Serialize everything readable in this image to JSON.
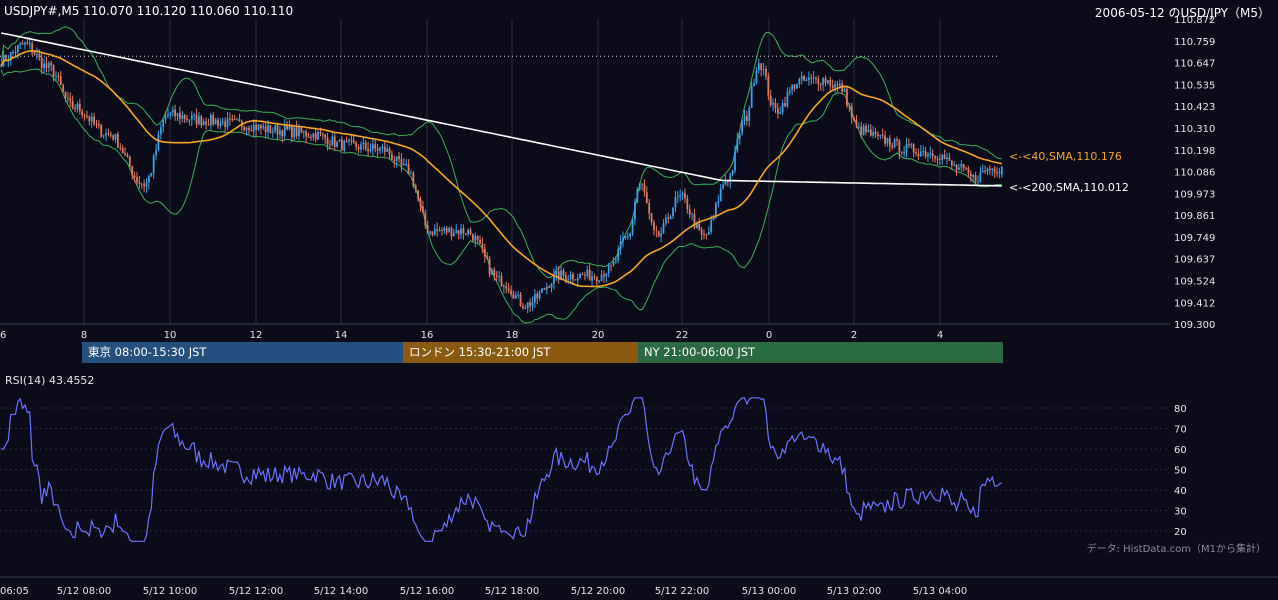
{
  "header": {
    "symbol_info": "USDJPY#,M5 110.070 110.120 110.060 110.110",
    "title": "2006-05-12 のUSD/JPY（M5）"
  },
  "sessions": [
    {
      "label": "東京 08:00-15:30 JST",
      "color": "#23507f"
    },
    {
      "label": "ロンドン 15:30-21:00 JST",
      "color": "#8a5a12"
    },
    {
      "label": "NY 21:00-06:00 JST",
      "color": "#2a6a40"
    }
  ],
  "rsi_label": "RSI(14) 43.4552",
  "credit": "データ: HistData.com（M1から集計）",
  "ma_labels": {
    "sma40": "<-<40,SMA,110.176",
    "sma200": "<-<200,SMA,110.012"
  },
  "colors": {
    "background": "#0b0b1a",
    "candle_up": "#3aa0e8",
    "candle_down": "#e07a5f",
    "sma40": "#f5a623",
    "sma200": "#ffffff",
    "bollinger": "#3fae5a",
    "rsi": "#6b73ff"
  },
  "chart_data": [
    {
      "type": "candlestick",
      "title": "USDJPY#,M5",
      "ylim": [
        109.3,
        110.872
      ],
      "y_ticks": [
        "110.872",
        "110.759",
        "110.647",
        "110.535",
        "110.423",
        "110.310",
        "110.198",
        "110.086",
        "109.973",
        "109.861",
        "109.749",
        "109.637",
        "109.524",
        "109.412",
        "109.300"
      ],
      "x_ticks": [
        "6",
        "8",
        "10",
        "12",
        "14",
        "16",
        "18",
        "20",
        "22",
        "0",
        "2",
        "4"
      ],
      "last_bar": {
        "open": 110.07,
        "high": 110.12,
        "low": 110.06,
        "close": 110.11
      },
      "price_anchors": [
        [
          0,
          110.66
        ],
        [
          10,
          110.74
        ],
        [
          20,
          110.62
        ],
        [
          30,
          110.42
        ],
        [
          45,
          110.28
        ],
        [
          60,
          110.02
        ],
        [
          70,
          110.38
        ],
        [
          85,
          110.35
        ],
        [
          100,
          110.33
        ],
        [
          115,
          110.3
        ],
        [
          130,
          110.28
        ],
        [
          145,
          110.22
        ],
        [
          160,
          110.2
        ],
        [
          170,
          110.1
        ],
        [
          180,
          109.78
        ],
        [
          195,
          109.78
        ],
        [
          210,
          109.52
        ],
        [
          220,
          109.4
        ],
        [
          235,
          109.55
        ],
        [
          250,
          109.55
        ],
        [
          255,
          109.58
        ],
        [
          263,
          109.75
        ],
        [
          268,
          110.02
        ],
        [
          275,
          109.75
        ],
        [
          285,
          109.95
        ],
        [
          295,
          109.75
        ],
        [
          305,
          110.05
        ],
        [
          312,
          110.35
        ],
        [
          318,
          110.65
        ],
        [
          325,
          110.4
        ],
        [
          335,
          110.55
        ],
        [
          345,
          110.56
        ],
        [
          352,
          110.52
        ],
        [
          360,
          110.3
        ],
        [
          370,
          110.25
        ],
        [
          380,
          110.2
        ],
        [
          392,
          110.18
        ],
        [
          402,
          110.1
        ],
        [
          408,
          110.05
        ],
        [
          415,
          110.1
        ],
        [
          420,
          110.11
        ]
      ],
      "series": [
        {
          "name": "40,SMA",
          "last_value": 110.176
        },
        {
          "name": "200,SMA",
          "last_value": 110.012
        }
      ]
    },
    {
      "type": "line",
      "title": "RSI(14)",
      "last_value": 43.4552,
      "ylim": [
        15,
        85
      ],
      "y_ticks": [
        80,
        70,
        60,
        50,
        40,
        30,
        20
      ],
      "x_ticks": [
        "06:05",
        "5/12 08:00",
        "5/12 10:00",
        "5/12 12:00",
        "5/12 14:00",
        "5/12 16:00",
        "5/12 18:00",
        "5/12 20:00",
        "5/12 22:00",
        "5/13 00:00",
        "5/13 02:00",
        "5/13 04:00"
      ]
    }
  ]
}
